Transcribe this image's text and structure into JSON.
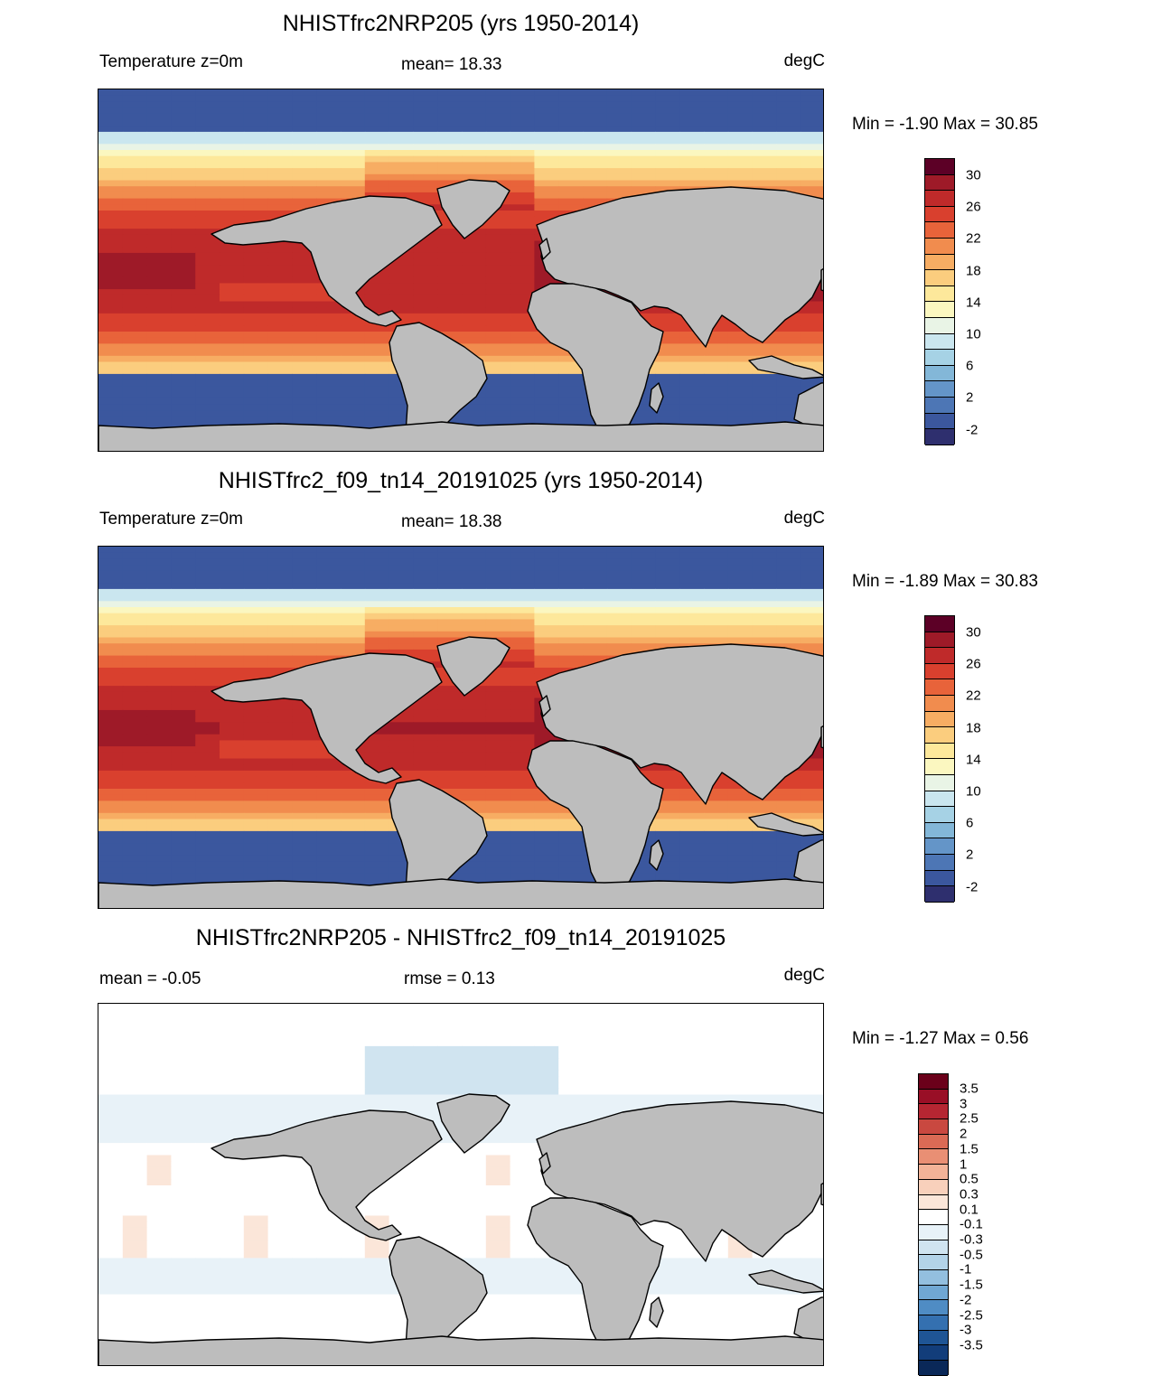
{
  "panels": [
    {
      "title": "NHISTfrc2NRP205 (yrs 1950-2014)",
      "left": "Temperature z=0m",
      "center": "mean=  18.33",
      "right": "degC",
      "minmax": "Min =  -1.90 Max =  30.85",
      "type": "temp"
    },
    {
      "title": "NHISTfrc2_f09_tn14_20191025 (yrs 1950-2014)",
      "left": "Temperature z=0m",
      "center": "mean=  18.38",
      "right": "degC",
      "minmax": "Min =  -1.89 Max =  30.83",
      "type": "temp"
    },
    {
      "title": "NHISTfrc2NRP205 - NHISTfrc2_f09_tn14_20191025",
      "left": "mean =  -0.05",
      "center": "rmse =   0.13",
      "right": "degC",
      "minmax": "Min =  -1.27 Max =   0.56",
      "type": "diff"
    }
  ],
  "temp_colorbar": {
    "colors": [
      "#5c0026",
      "#9e1a28",
      "#bf2a2a",
      "#d9402e",
      "#e8633a",
      "#f18c4e",
      "#f7ad63",
      "#fbcd7e",
      "#fde89b",
      "#fbf7c0",
      "#e9f4e6",
      "#cae6ef",
      "#a6d2e5",
      "#83b7d8",
      "#6495c8",
      "#4d76b5",
      "#3b579e",
      "#2e2f6e"
    ],
    "labels": [
      "30",
      "26",
      "22",
      "18",
      "14",
      "10",
      "6",
      "2",
      "-2"
    ]
  },
  "diff_colorbar": {
    "colors": [
      "#6b001a",
      "#990f26",
      "#b52632",
      "#c94840",
      "#da6a55",
      "#e98f74",
      "#f3b398",
      "#f8d0bb",
      "#fbe6d9",
      "#ffffff",
      "#e8f2f8",
      "#d0e4f0",
      "#b3d3e8",
      "#93bfdf",
      "#70a7d3",
      "#4f8cc4",
      "#3470b0",
      "#1f5595",
      "#123d7a",
      "#0a2858"
    ],
    "labels": [
      "3.5",
      "3",
      "2.5",
      "2",
      "1.5",
      "1",
      "0.5",
      "0.3",
      "0.1",
      "-0.1",
      "-0.3",
      "-0.5",
      "-1",
      "-1.5",
      "-2",
      "-2.5",
      "-3",
      "-3.5"
    ]
  },
  "land_color": "#bdbdbd"
}
